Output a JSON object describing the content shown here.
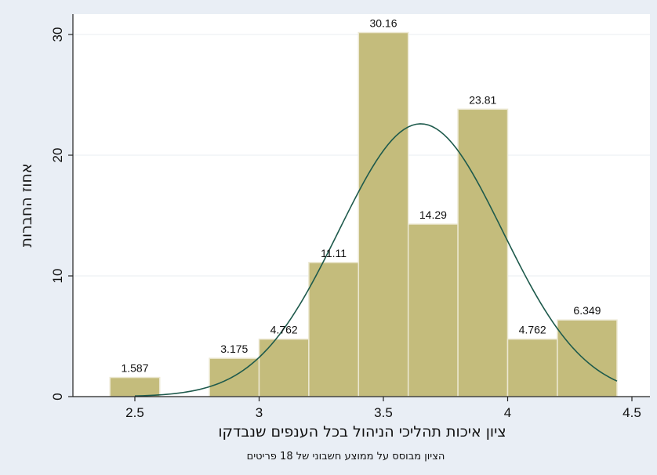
{
  "chart_data": {
    "type": "bar",
    "subtype": "histogram",
    "bins": [
      {
        "x0": 2.4,
        "x1": 2.6,
        "value": 1.587,
        "label": "1.587"
      },
      {
        "x0": 2.8,
        "x1": 3.0,
        "value": 3.175,
        "label": "3.175"
      },
      {
        "x0": 3.0,
        "x1": 3.2,
        "value": 4.762,
        "label": "4.762"
      },
      {
        "x0": 3.2,
        "x1": 3.4,
        "value": 11.11,
        "label": "11.11"
      },
      {
        "x0": 3.4,
        "x1": 3.6,
        "value": 30.16,
        "label": "30.16"
      },
      {
        "x0": 3.6,
        "x1": 3.8,
        "value": 14.29,
        "label": "14.29"
      },
      {
        "x0": 3.8,
        "x1": 4.0,
        "value": 23.81,
        "label": "23.81"
      },
      {
        "x0": 4.0,
        "x1": 4.2,
        "value": 4.762,
        "label": "4.762"
      },
      {
        "x0": 4.2,
        "x1": 4.44,
        "value": 6.349,
        "label": "6.349"
      }
    ],
    "normal_curve": {
      "mean": 3.65,
      "sd": 0.33,
      "peak": 22.6,
      "x_range": [
        2.5,
        4.44
      ]
    },
    "xlim": [
      2.3,
      4.55
    ],
    "ylim": [
      0,
      31
    ],
    "x_ticks": [
      2.5,
      3,
      3.5,
      4,
      4.5
    ],
    "x_tick_labels": [
      "2.5",
      "3",
      "3.5",
      "4",
      "4.5"
    ],
    "y_ticks": [
      0,
      10,
      20,
      30
    ],
    "y_tick_labels": [
      "0",
      "10",
      "20",
      "30"
    ],
    "xlabel": "ציון איכות תהליכי הניהול בכל הענפים שנבדקו",
    "ylabel": "אחוז החברות",
    "note": "הציון מבוסס על ממוצע חשבוני של 18 פריטים",
    "grid": "horizontal",
    "colors": {
      "bar_fill": "#c4bc7c",
      "bar_stroke": "#ece8d2",
      "curve": "#1e5a4c",
      "background": "#e9eef5",
      "plot_background": "#ffffff",
      "grid": "#e8ecf1"
    }
  }
}
